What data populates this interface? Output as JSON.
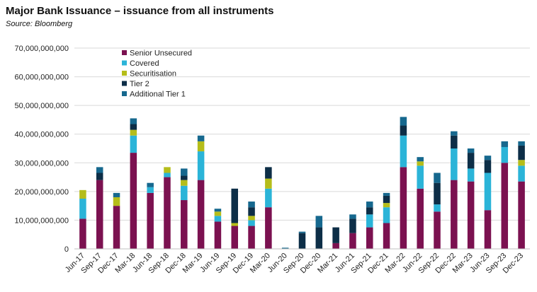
{
  "chart_data": {
    "type": "bar",
    "stacked": true,
    "title": "Major Bank Issuance – issuance from all instruments",
    "subtitle": "Source: Bloomberg",
    "xlabel": "",
    "ylabel": "",
    "ylim": [
      0,
      70000000000
    ],
    "yticks": [
      "0",
      "10,000,000,000",
      "20,000,000,000",
      "30,000,000,000",
      "40,000,000,000",
      "50,000,000,000",
      "60,000,000,000",
      "70,000,000,000"
    ],
    "grid": true,
    "legend_position": "top-left",
    "categories": [
      "Jun-17",
      "Sep-17",
      "Dec-17",
      "Mar-18",
      "Jun-18",
      "Sep-18",
      "Dec-18",
      "Mar-19",
      "Jun-19",
      "Sep-19",
      "Dec-19",
      "Mar-20",
      "Jun-20",
      "Sep-20",
      "Dec-20",
      "Mar-21",
      "Jun-21",
      "Sep-21",
      "Dec-21",
      "Mar-22",
      "Jun-22",
      "Sep-22",
      "Dec-22",
      "Mar-23",
      "Jun-23",
      "Sep-23",
      "Dec-23"
    ],
    "series": [
      {
        "name": "Senior Unsecured",
        "color": "#7b1150",
        "values": [
          10500000000,
          24000000000,
          15000000000,
          33500000000,
          19500000000,
          25000000000,
          17000000000,
          24000000000,
          9500000000,
          8000000000,
          8000000000,
          14500000000,
          0,
          0,
          0,
          2000000000,
          5500000000,
          7500000000,
          9000000000,
          28500000000,
          21000000000,
          13000000000,
          24000000000,
          23500000000,
          13500000000,
          30000000000,
          23500000000
        ]
      },
      {
        "name": "Covered",
        "color": "#2bb4d8",
        "values": [
          7000000000,
          0,
          0,
          6000000000,
          2000000000,
          1500000000,
          5000000000,
          10000000000,
          2000000000,
          0,
          2000000000,
          6500000000,
          0,
          0,
          0,
          0,
          0,
          4500000000,
          5500000000,
          11000000000,
          8000000000,
          2500000000,
          11000000000,
          4500000000,
          13000000000,
          5500000000,
          5500000000
        ]
      },
      {
        "name": "Securitisation",
        "color": "#b5bd1a",
        "values": [
          3000000000,
          0,
          3000000000,
          2000000000,
          0,
          2000000000,
          2000000000,
          3500000000,
          1500000000,
          1000000000,
          1500000000,
          3500000000,
          0,
          0,
          0,
          0,
          0,
          0,
          1500000000,
          0,
          1500000000,
          0,
          0,
          0,
          0,
          0,
          2000000000
        ]
      },
      {
        "name": "Tier 2",
        "color": "#0d2e47",
        "values": [
          0,
          2500000000,
          0,
          2000000000,
          0,
          0,
          1500000000,
          0,
          0,
          12000000000,
          3000000000,
          4000000000,
          0,
          5500000000,
          7500000000,
          5500000000,
          5000000000,
          2500000000,
          2500000000,
          3500000000,
          0,
          7500000000,
          4500000000,
          5500000000,
          4500000000,
          0,
          5000000000
        ]
      },
      {
        "name": "Additional Tier 1",
        "color": "#16688e",
        "values": [
          0,
          2000000000,
          1500000000,
          2000000000,
          1500000000,
          0,
          2500000000,
          2000000000,
          1000000000,
          0,
          2000000000,
          0,
          400000000,
          500000000,
          4000000000,
          0,
          1500000000,
          2000000000,
          1000000000,
          3000000000,
          1500000000,
          3500000000,
          1500000000,
          1500000000,
          1500000000,
          2000000000,
          1500000000
        ]
      }
    ]
  }
}
